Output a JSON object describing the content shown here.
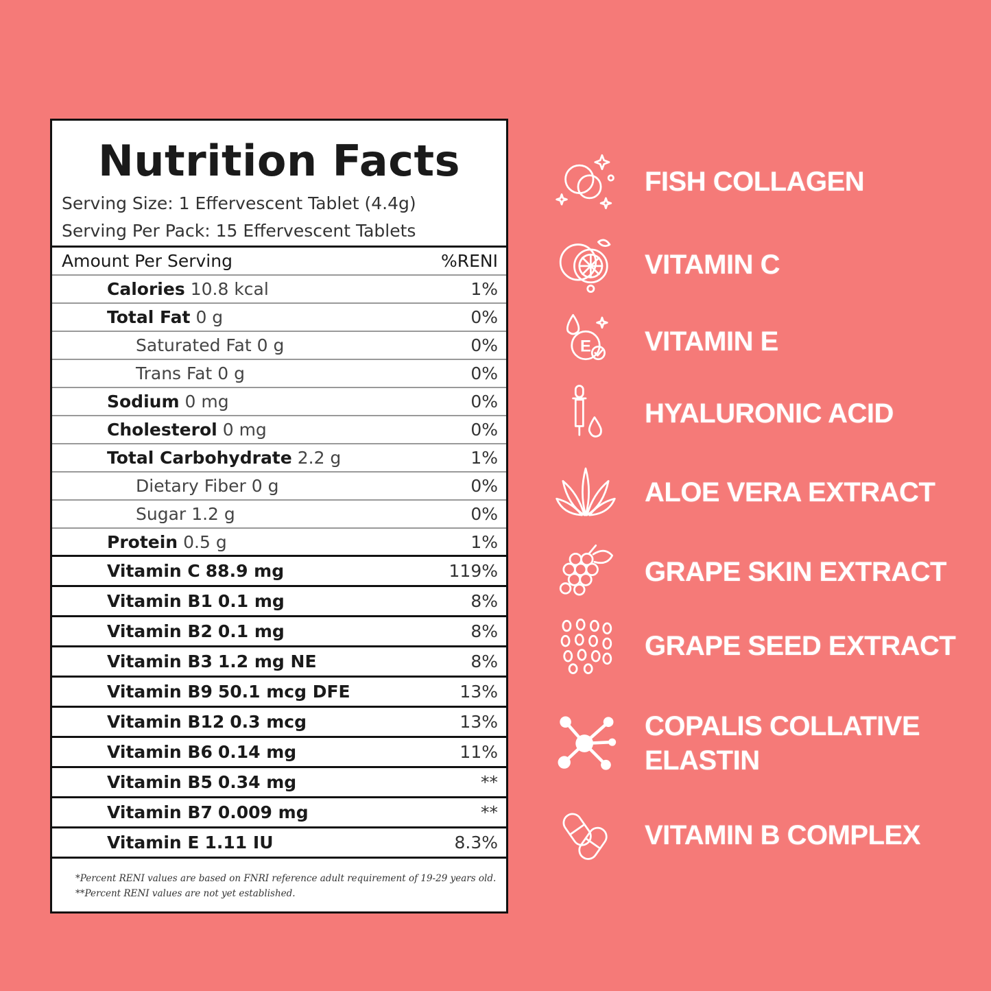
{
  "colors": {
    "background": "#f57a78",
    "label_bg": "#ffffff",
    "ingredient_text": "#ffffff"
  },
  "nutrition": {
    "title": "Nutrition Facts",
    "serving_size": "Serving Size: 1 Effervescent Tablet (4.4g)",
    "servings_per_pack": "Serving Per Pack: 15 Effervescent Tablets",
    "header": {
      "left": "Amount Per Serving",
      "right": "%RENI"
    },
    "rows": [
      {
        "label": "Calories",
        "amount": "10.8 kcal",
        "pct": "1%"
      },
      {
        "label": "Total Fat",
        "amount": "0 g",
        "pct": "0%"
      },
      {
        "label": "Saturated Fat",
        "amount": "0 g",
        "pct": "0%"
      },
      {
        "label": "Trans Fat",
        "amount": "0 g",
        "pct": "0%"
      },
      {
        "label": "Sodium",
        "amount": "0 mg",
        "pct": "0%"
      },
      {
        "label": "Cholesterol",
        "amount": "0 mg",
        "pct": "0%"
      },
      {
        "label": "Total Carbohydrate",
        "amount": "2.2 g",
        "pct": "1%"
      },
      {
        "label": "Dietary Fiber",
        "amount": "0 g",
        "pct": "0%"
      },
      {
        "label": "Sugar",
        "amount": "1.2 g",
        "pct": "0%"
      },
      {
        "label": "Protein",
        "amount": "0.5 g",
        "pct": "1%"
      },
      {
        "label": "Vitamin C",
        "amount": "88.9 mg",
        "pct": "119%"
      },
      {
        "label": "Vitamin B1",
        "amount": "0.1 mg",
        "pct": "8%"
      },
      {
        "label": "Vitamin B2",
        "amount": "0.1 mg",
        "pct": "8%"
      },
      {
        "label": "Vitamin B3",
        "amount": "1.2 mg NE",
        "pct": "8%"
      },
      {
        "label": "Vitamin B9",
        "amount": "50.1 mcg DFE",
        "pct": "13%"
      },
      {
        "label": "Vitamin B12",
        "amount": "0.3 mcg",
        "pct": "13%"
      },
      {
        "label": "Vitamin B6",
        "amount": "0.14 mg",
        "pct": "11%"
      },
      {
        "label": "Vitamin B5",
        "amount": "0.34 mg",
        "pct": "**"
      },
      {
        "label": "Vitamin B7",
        "amount": "0.009 mg",
        "pct": "**"
      },
      {
        "label": "Vitamin E",
        "amount": "1.11 IU",
        "pct": "8.3%"
      }
    ],
    "footnotes": [
      "*Percent RENI values are based on FNRI reference adult requirement of 19-29 years old.",
      "**Percent RENI values are not yet established."
    ]
  },
  "ingredients": [
    {
      "label": "FISH COLLAGEN",
      "icon": "collagen-bubbles-icon"
    },
    {
      "label": "VITAMIN C",
      "icon": "orange-slice-icon"
    },
    {
      "label": "VITAMIN E",
      "icon": "vitamin-e-drop-icon"
    },
    {
      "label": "HYALURONIC ACID",
      "icon": "dropper-icon"
    },
    {
      "label": "ALOE VERA EXTRACT",
      "icon": "aloe-leaf-icon"
    },
    {
      "label": "GRAPE SKIN EXTRACT",
      "icon": "grape-bunch-icon"
    },
    {
      "label": "GRAPE SEED EXTRACT",
      "icon": "grape-seeds-icon"
    },
    {
      "label": "COPALIS COLLATIVE\nELASTIN",
      "lines": [
        "COPALIS COLLATIVE",
        "ELASTIN"
      ],
      "icon": "molecule-icon"
    },
    {
      "label": "VITAMIN B COMPLEX",
      "icon": "capsules-icon"
    }
  ]
}
